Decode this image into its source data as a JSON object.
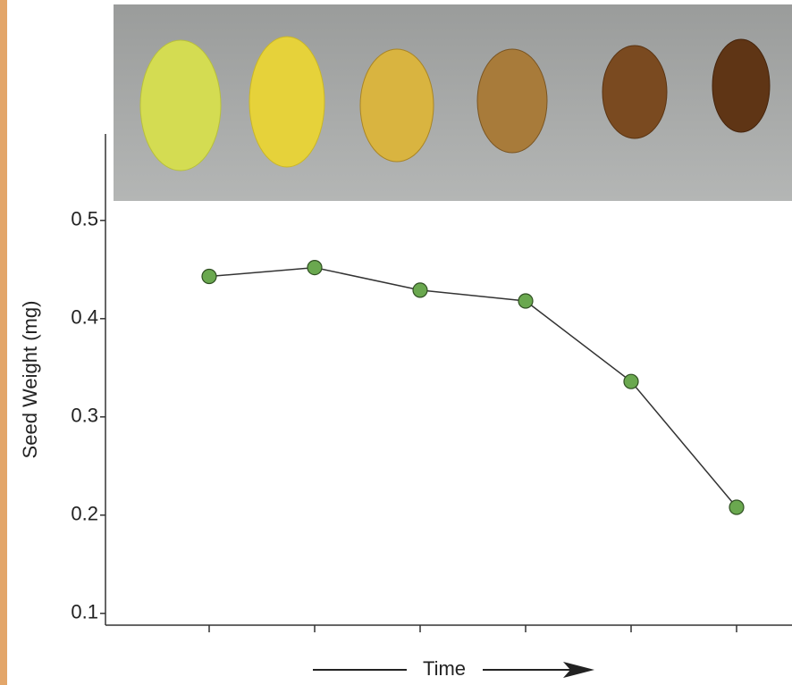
{
  "chart_data": {
    "type": "line",
    "y_label": "Seed Weight (mg)",
    "x_label": "Time",
    "categories": [
      null,
      null,
      null,
      null,
      null,
      null
    ],
    "values": [
      0.443,
      0.452,
      0.429,
      0.418,
      0.336,
      0.208
    ],
    "color": "#6aa84f",
    "line_color": "#333333",
    "ylim": [
      0.088,
      0.588
    ],
    "yticks": [
      0.1,
      0.2,
      0.3,
      0.4,
      0.5
    ]
  }
}
